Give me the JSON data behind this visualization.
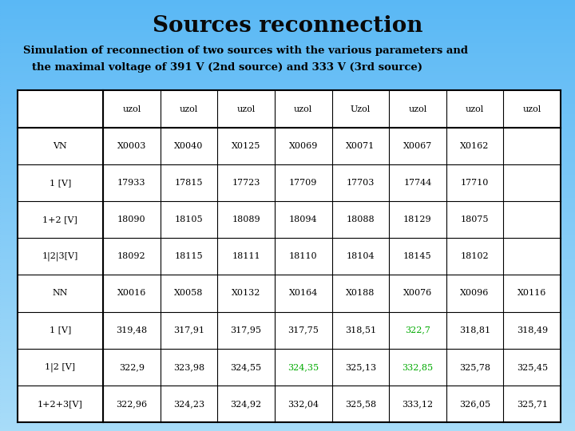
{
  "title": "Sources reconnection",
  "subtitle_line1": "Simulation of reconnection of two sources with the various parameters and",
  "subtitle_line2": "the maximal voltage of 391 V (2nd source) and 333 V (3rd source)",
  "bg_color_top": "#5ab8f5",
  "bg_color_bottom": "#a8dcf8",
  "table_header": [
    "",
    "uzol",
    "uzol",
    "uzol",
    "uzol",
    "Uzol",
    "uzol",
    "uzol",
    "uzol"
  ],
  "table_rows": [
    [
      "VN",
      "X0003",
      "X0040",
      "X0125",
      "X0069",
      "X0071",
      "X0067",
      "X0162",
      ""
    ],
    [
      "1 [V]",
      "17933",
      "17815",
      "17723",
      "17709",
      "17703",
      "17744",
      "17710",
      ""
    ],
    [
      "1+2 [V]",
      "18090",
      "18105",
      "18089",
      "18094",
      "18088",
      "18129",
      "18075",
      ""
    ],
    [
      "1|2|3[V]",
      "18092",
      "18115",
      "18111",
      "18110",
      "18104",
      "18145",
      "18102",
      ""
    ],
    [
      "NN",
      "X0016",
      "X0058",
      "X0132",
      "X0164",
      "X0188",
      "X0076",
      "X0096",
      "X0116"
    ],
    [
      "1 [V]",
      "319,48",
      "317,91",
      "317,95",
      "317,75",
      "318,51",
      "322,7",
      "318,81",
      "318,49"
    ],
    [
      "1|2 [V]",
      "322,9",
      "323,98",
      "324,55",
      "324,35",
      "325,13",
      "332,85",
      "325,78",
      "325,45"
    ],
    [
      "1+2+3[V]",
      "322,96",
      "324,23",
      "324,92",
      "332,04",
      "325,58",
      "333,12",
      "326,05",
      "325,71"
    ]
  ],
  "highlight_cells": [
    [
      7,
      6,
      "#00aa00"
    ],
    [
      8,
      4,
      "#00aa00"
    ],
    [
      8,
      6,
      "#00aa00"
    ]
  ],
  "table_bg": "#ffffff",
  "table_border": "#000000",
  "text_color": "#000000",
  "title_color": "#0a0a0a",
  "font_family": "DejaVu Serif"
}
